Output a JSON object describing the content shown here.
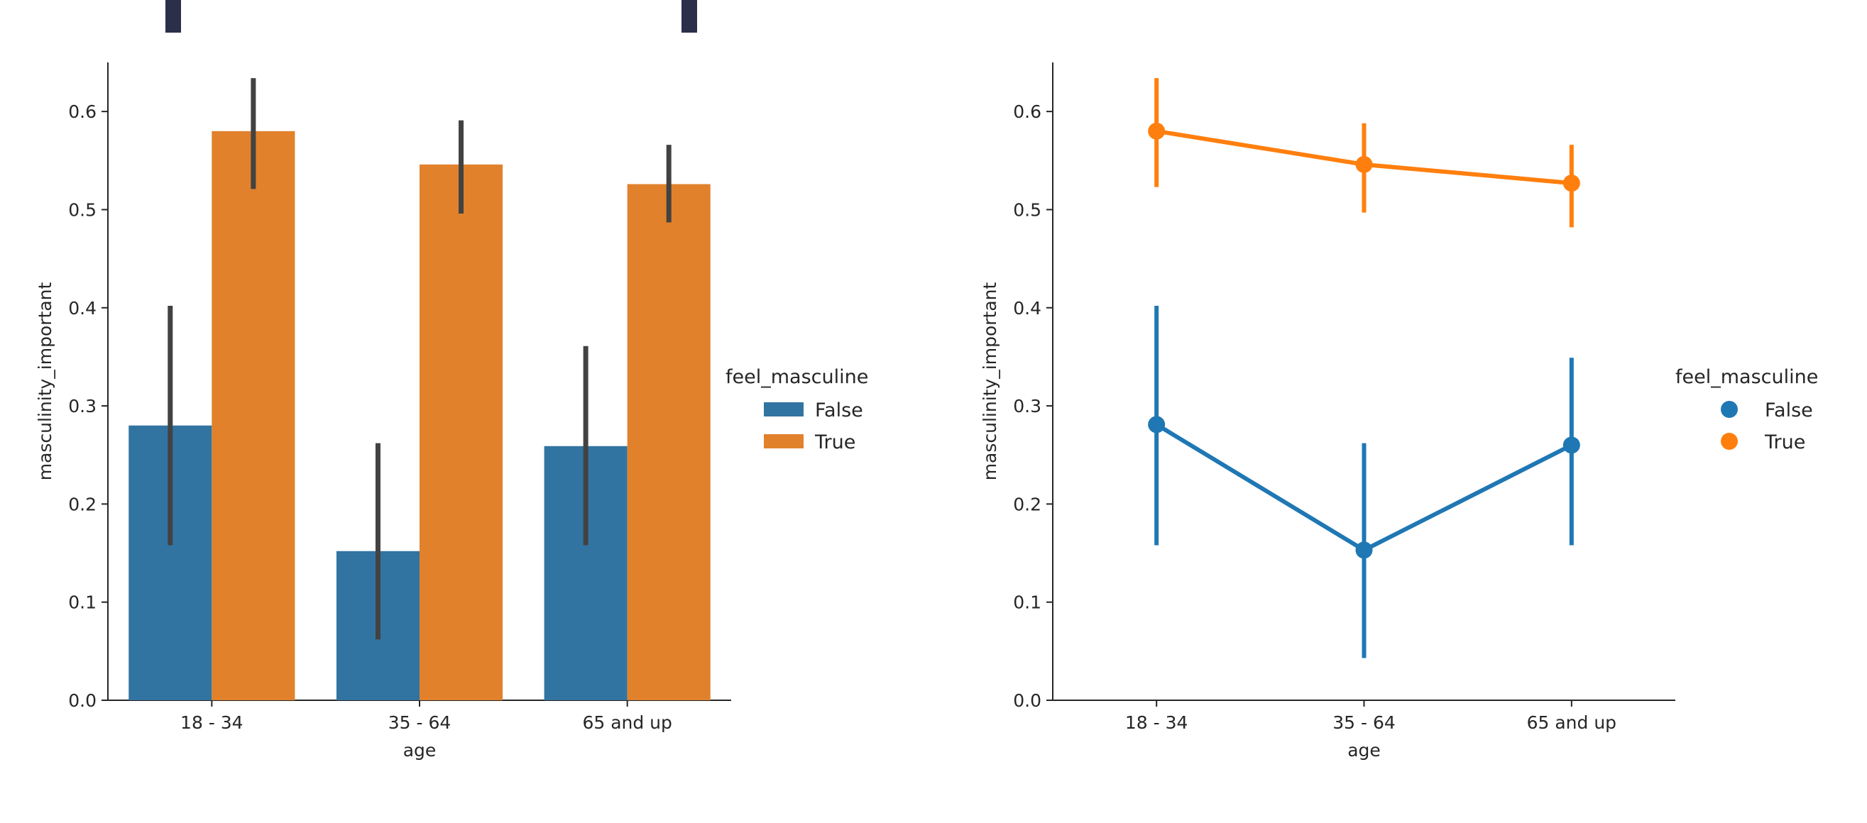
{
  "figure_header": "",
  "chart_data": [
    {
      "type": "bar",
      "categories": [
        "18 - 34",
        "35 - 64",
        "65 and up"
      ],
      "series": [
        {
          "name": "False",
          "values": [
            0.28,
            0.152,
            0.259
          ],
          "ci_low": [
            0.158,
            0.062,
            0.158
          ],
          "ci_high": [
            0.402,
            0.262,
            0.361
          ]
        },
        {
          "name": "True",
          "values": [
            0.58,
            0.546,
            0.526
          ],
          "ci_low": [
            0.521,
            0.496,
            0.487
          ],
          "ci_high": [
            0.634,
            0.591,
            0.566
          ]
        }
      ],
      "colors": {
        "False": "#3274a1",
        "True": "#e1812c",
        "errorbar": "#424242"
      },
      "xlabel": "age",
      "ylabel": "masculinity_important",
      "ylim": [
        0,
        0.65
      ],
      "yticks": [
        "0.0",
        "0.1",
        "0.2",
        "0.3",
        "0.4",
        "0.5",
        "0.6"
      ],
      "legend": {
        "title": "feel_masculine",
        "entries": [
          "False",
          "True"
        ],
        "placement": "right"
      }
    },
    {
      "type": "line",
      "categories": [
        "18 - 34",
        "35 - 64",
        "65 and up"
      ],
      "series": [
        {
          "name": "False",
          "values": [
            0.281,
            0.153,
            0.26
          ],
          "ci_low": [
            0.158,
            0.043,
            0.158
          ],
          "ci_high": [
            0.402,
            0.262,
            0.349
          ]
        },
        {
          "name": "True",
          "values": [
            0.58,
            0.546,
            0.527
          ],
          "ci_low": [
            0.523,
            0.497,
            0.482
          ],
          "ci_high": [
            0.634,
            0.588,
            0.566
          ]
        }
      ],
      "colors": {
        "False": "#1f77b4",
        "True": "#ff7f0e"
      },
      "xlabel": "age",
      "ylabel": "masculinity_important",
      "ylim": [
        0,
        0.65
      ],
      "yticks": [
        "0.0",
        "0.1",
        "0.2",
        "0.3",
        "0.4",
        "0.5",
        "0.6"
      ],
      "legend": {
        "title": "feel_masculine",
        "entries": [
          "False",
          "True"
        ],
        "placement": "right"
      }
    }
  ]
}
